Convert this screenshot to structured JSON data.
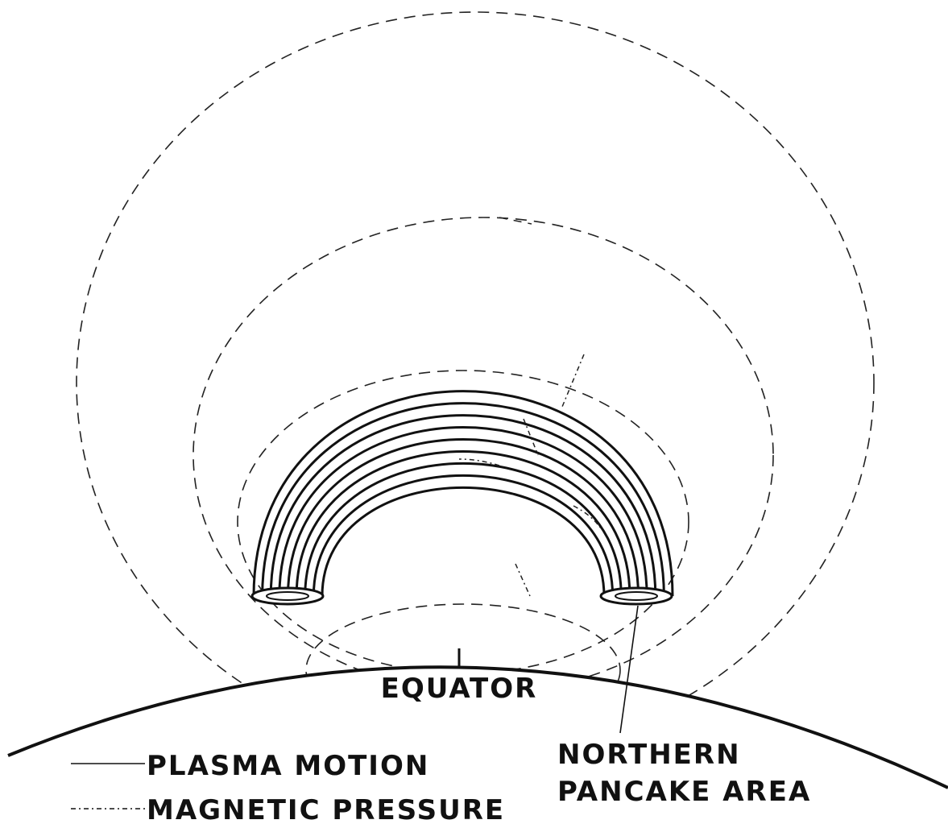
{
  "labels": {
    "equator": "EQUATOR",
    "northern_area": [
      "NORTHERN",
      "PANCAKE AREA"
    ]
  },
  "legend": [
    {
      "label": "PLASMA MOTION"
    },
    {
      "label": "MAGNETIC PRESSURE"
    }
  ]
}
